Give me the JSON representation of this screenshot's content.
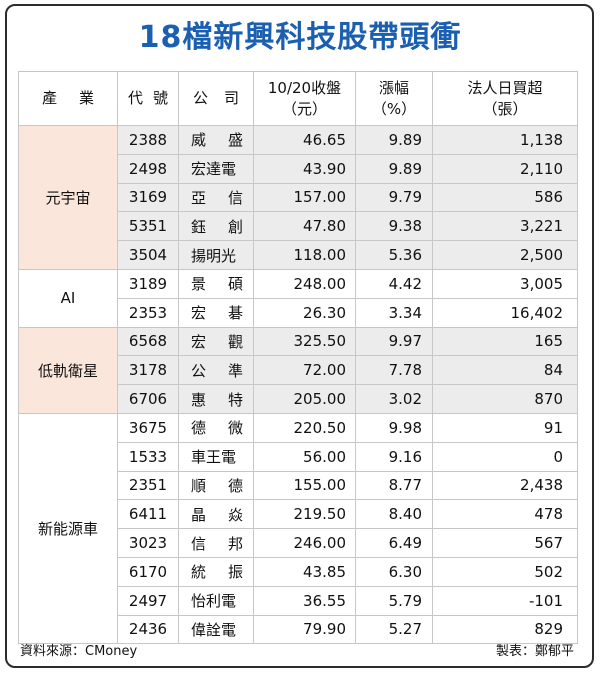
{
  "title": "18檔新興科技股帶頭衝",
  "headers": {
    "industry_a": "產",
    "industry_b": "業",
    "code_a": "代",
    "code_b": "號",
    "company_a": "公",
    "company_b": "司",
    "close_line1": "10/20收盤",
    "close_line2": "（元）",
    "change_line1": "漲幅",
    "change_line2": "（%）",
    "net_line1": "法人日買超",
    "net_line2": "（張）"
  },
  "groups": [
    {
      "industry": "元宇宙",
      "rows": [
        {
          "code": "2388",
          "company": [
            "威",
            "盛"
          ],
          "close": "46.65",
          "change": "9.89",
          "net": "1,138"
        },
        {
          "code": "2498",
          "company": [
            "宏達電"
          ],
          "close": "43.90",
          "change": "9.89",
          "net": "2,110"
        },
        {
          "code": "3169",
          "company": [
            "亞",
            "信"
          ],
          "close": "157.00",
          "change": "9.79",
          "net": "586"
        },
        {
          "code": "5351",
          "company": [
            "鈺",
            "創"
          ],
          "close": "47.80",
          "change": "9.38",
          "net": "3,221"
        },
        {
          "code": "3504",
          "company": [
            "揚明光"
          ],
          "close": "118.00",
          "change": "5.36",
          "net": "2,500"
        }
      ]
    },
    {
      "industry": "AI",
      "rows": [
        {
          "code": "3189",
          "company": [
            "景",
            "碩"
          ],
          "close": "248.00",
          "change": "4.42",
          "net": "3,005"
        },
        {
          "code": "2353",
          "company": [
            "宏",
            "碁"
          ],
          "close": "26.30",
          "change": "3.34",
          "net": "16,402"
        }
      ]
    },
    {
      "industry": "低軌衛星",
      "rows": [
        {
          "code": "6568",
          "company": [
            "宏",
            "觀"
          ],
          "close": "325.50",
          "change": "9.97",
          "net": "165"
        },
        {
          "code": "3178",
          "company": [
            "公",
            "準"
          ],
          "close": "72.00",
          "change": "7.78",
          "net": "84"
        },
        {
          "code": "6706",
          "company": [
            "惠",
            "特"
          ],
          "close": "205.00",
          "change": "3.02",
          "net": "870"
        }
      ]
    },
    {
      "industry": "新能源車",
      "rows": [
        {
          "code": "3675",
          "company": [
            "德",
            "微"
          ],
          "close": "220.50",
          "change": "9.98",
          "net": "91"
        },
        {
          "code": "1533",
          "company": [
            "車王電"
          ],
          "close": "56.00",
          "change": "9.16",
          "net": "0"
        },
        {
          "code": "2351",
          "company": [
            "順",
            "德"
          ],
          "close": "155.00",
          "change": "8.77",
          "net": "2,438"
        },
        {
          "code": "6411",
          "company": [
            "晶",
            "焱"
          ],
          "close": "219.50",
          "change": "8.40",
          "net": "478"
        },
        {
          "code": "3023",
          "company": [
            "信",
            "邦"
          ],
          "close": "246.00",
          "change": "6.49",
          "net": "567"
        },
        {
          "code": "6170",
          "company": [
            "統",
            "振"
          ],
          "close": "43.85",
          "change": "6.30",
          "net": "502"
        },
        {
          "code": "2497",
          "company": [
            "怡利電"
          ],
          "close": "36.55",
          "change": "5.79",
          "net": "-101"
        },
        {
          "code": "2436",
          "company": [
            "偉詮電"
          ],
          "close": "79.90",
          "change": "5.27",
          "net": "829"
        }
      ]
    }
  ],
  "footer": {
    "source": "資料來源：CMoney",
    "credit": "製表：鄭郁平"
  },
  "colors": {
    "title": "#1b5fb0",
    "industry_highlight": "#fbe6dc",
    "row_shade": "#ececec"
  }
}
